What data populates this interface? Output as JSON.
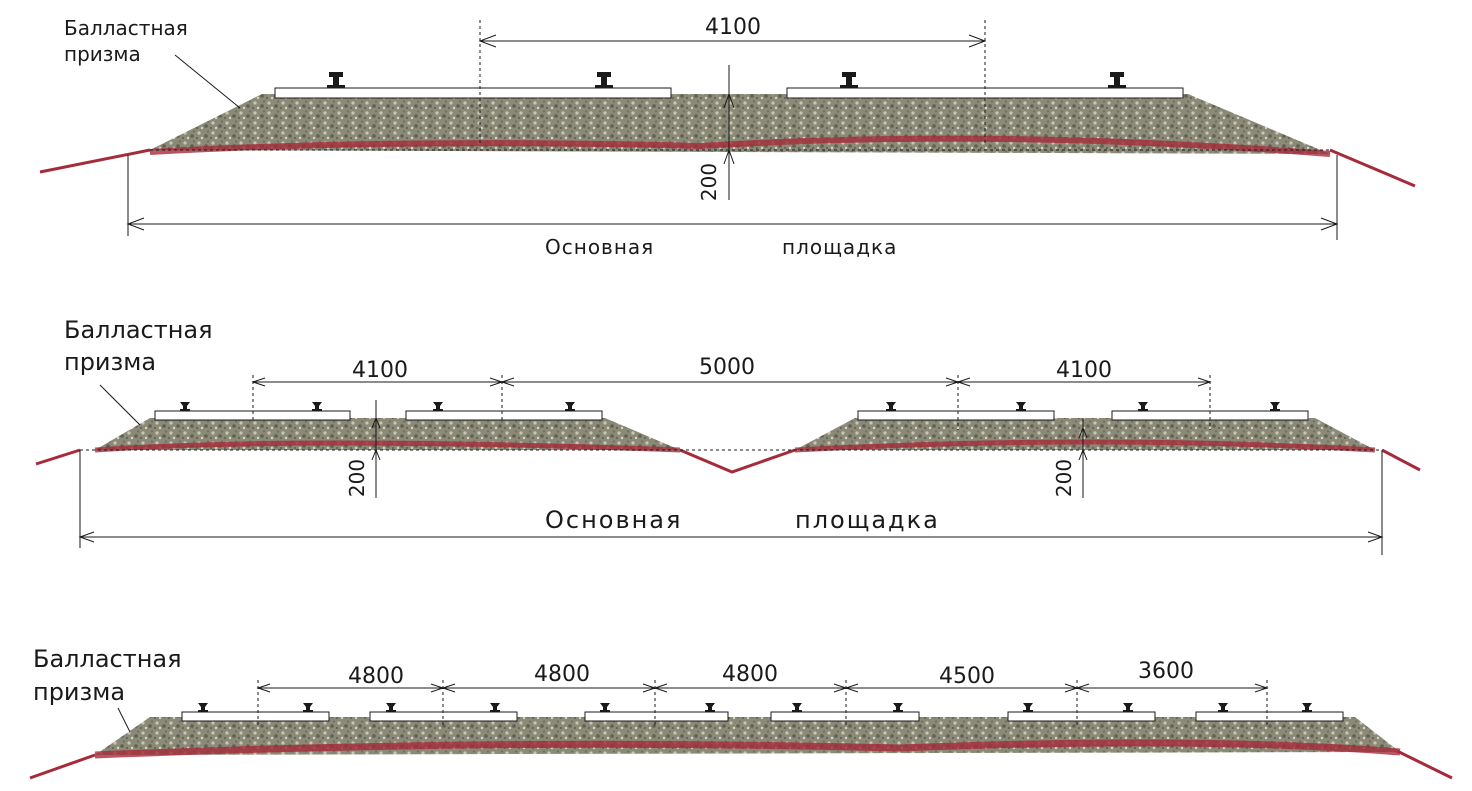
{
  "colors": {
    "ballast": "#8b8a78",
    "ballast_dark": "#5f6050",
    "ballast_light": "#c9c7b4",
    "subgrade": "#a52a3a",
    "line": "#1a1a1a",
    "sleeper": "#ffffff"
  },
  "diagram1": {
    "label_line1": "Балластная",
    "label_line2": "призма",
    "track_spacing": "4100",
    "ballast_depth": "200",
    "base_label_a": "Основная",
    "base_label_b": "площадка"
  },
  "diagram2": {
    "label_line1": "Балластная",
    "label_line2": "призма",
    "spacing_left": "4100",
    "spacing_middle": "5000",
    "spacing_right": "4100",
    "depth_left": "200",
    "depth_right": "200",
    "base_label_a": "Основная",
    "base_label_b": "площадка"
  },
  "diagram3": {
    "label_line1": "Балластная",
    "label_line2": "призма",
    "spacings": [
      "4800",
      "4800",
      "4800",
      "4500",
      "3600"
    ]
  }
}
